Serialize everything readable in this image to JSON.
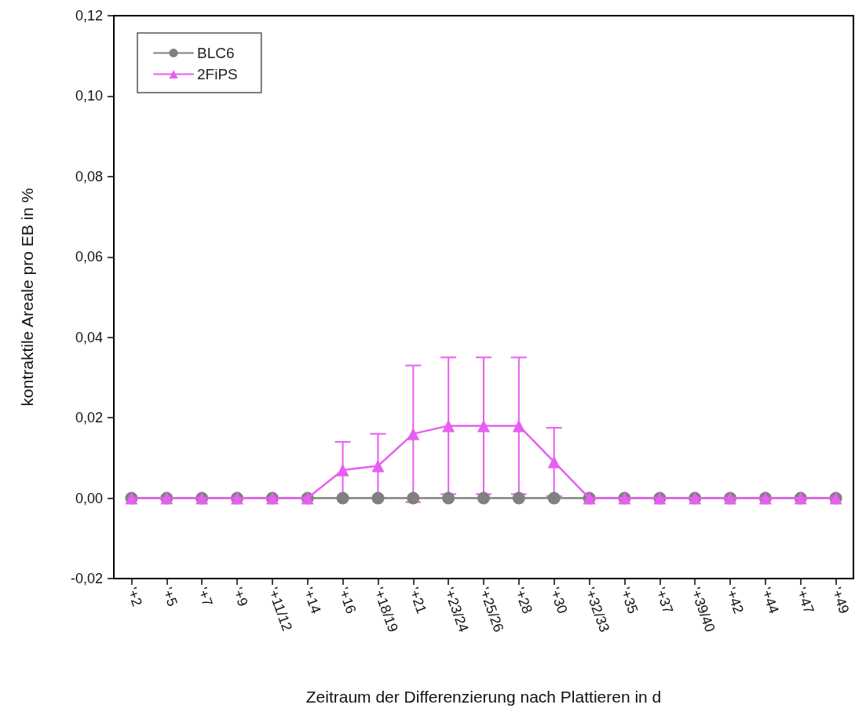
{
  "chart_data": {
    "type": "line",
    "xlabel": "Zeitraum der Differenzierung nach Plattieren in d",
    "ylabel": "kontraktile Areale pro EB in %",
    "categories": [
      "'+2",
      "'+5",
      "'+7",
      "'+9",
      "'+11/12",
      "'+14",
      "'+16",
      "'+18/19",
      "'+21",
      "'+23/24",
      "'+25/26",
      "'+28",
      "'+30",
      "'+32/33",
      "'+35",
      "'+37",
      "'+39/40",
      "'+42",
      "'+44",
      "'+47",
      "'+49"
    ],
    "series": [
      {
        "name": "BLC6",
        "color": "#808080",
        "marker": "circle",
        "values": [
          0,
          0,
          0,
          0,
          0,
          0,
          0,
          0,
          0,
          0,
          0,
          0,
          0,
          0,
          0,
          0,
          0,
          0,
          0,
          0,
          0
        ]
      },
      {
        "name": "2FiPS",
        "color": "#e75ff0",
        "marker": "triangle",
        "values": [
          0,
          0,
          0,
          0,
          0,
          0,
          0.007,
          0.008,
          0.016,
          0.018,
          0.018,
          0.018,
          0.009,
          0,
          0,
          0,
          0,
          0,
          0,
          0,
          0
        ],
        "errors": [
          null,
          null,
          null,
          null,
          null,
          null,
          0.007,
          0.008,
          0.017,
          0.017,
          0.017,
          0.017,
          0.0085,
          null,
          null,
          null,
          null,
          null,
          null,
          null,
          null
        ]
      }
    ],
    "ylim": [
      -0.02,
      0.12
    ],
    "yticks": [
      {
        "value": -0.02,
        "label": "-0,02"
      },
      {
        "value": 0,
        "label": "0,00"
      },
      {
        "value": 0.02,
        "label": "0,02"
      },
      {
        "value": 0.04,
        "label": "0,04"
      },
      {
        "value": 0.06,
        "label": "0,06"
      },
      {
        "value": 0.08,
        "label": "0,08"
      },
      {
        "value": 0.1,
        "label": "0,10"
      },
      {
        "value": 0.12,
        "label": "0,12"
      }
    ],
    "grid": false,
    "legend": "top left"
  }
}
